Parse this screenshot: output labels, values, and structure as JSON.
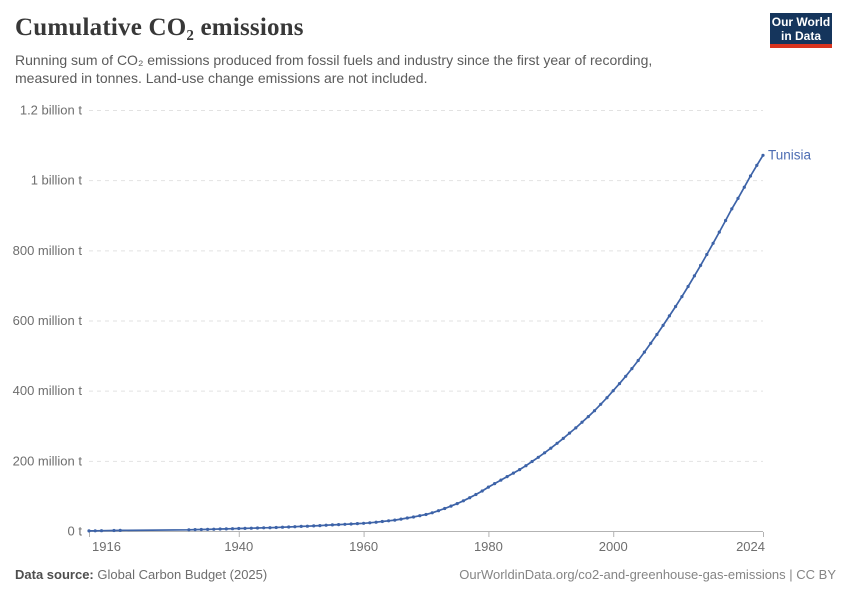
{
  "header": {
    "title": "Cumulative CO₂ emissions",
    "subtitle": "Running sum of CO₂ emissions produced from fossil fuels and industry since the first year of recording, measured in tonnes. Land-use change emissions are not included.",
    "logo": {
      "line1": "Our World",
      "line2": "in Data",
      "bg_color": "#15355c",
      "stripe_color": "#d8341f"
    }
  },
  "footer": {
    "source_label": "Data source:",
    "source_value": "Global Carbon Budget (2025)",
    "right_text": "OurWorldinData.org/co2-and-greenhouse-gas-emissions | CC BY"
  },
  "chart_data": {
    "type": "line",
    "title": "Cumulative CO₂ emissions",
    "entity_label": "Tunisia",
    "unit": "tonnes (values stored in million tonnes)",
    "line_color": "#3d63a8",
    "entity_label_color": "#4d6db3",
    "grid_color": "#e2e2e2",
    "axis_color": "#b3b3b3",
    "tick_label_color": "#6e6e6e",
    "grid": "dashed-horizontal",
    "legend_position": "line-end-label",
    "xlim": [
      1916,
      2024
    ],
    "ylim": [
      0,
      1200
    ],
    "x_ticks": [
      1916,
      1940,
      1960,
      1980,
      2000,
      2024
    ],
    "y_ticks": [
      {
        "value": 0,
        "label": "0 t"
      },
      {
        "value": 200,
        "label": "200 million t"
      },
      {
        "value": 400,
        "label": "400 million t"
      },
      {
        "value": 600,
        "label": "600 million t"
      },
      {
        "value": 800,
        "label": "800 million t"
      },
      {
        "value": 1000,
        "label": "1 billion t"
      },
      {
        "value": 1200,
        "label": "1.2 billion t"
      }
    ],
    "series": [
      {
        "name": "Tunisia",
        "points": [
          [
            1916,
            0.3
          ],
          [
            1917,
            0.6
          ],
          [
            1918,
            0.9
          ],
          [
            1920,
            1.4
          ],
          [
            1921,
            1.7
          ],
          [
            1932,
            3.5
          ],
          [
            1933,
            3.9
          ],
          [
            1934,
            4.3
          ],
          [
            1935,
            4.7
          ],
          [
            1936,
            5.1
          ],
          [
            1937,
            5.6
          ],
          [
            1938,
            6.0
          ],
          [
            1939,
            6.5
          ],
          [
            1940,
            7.0
          ],
          [
            1941,
            7.5
          ],
          [
            1942,
            8.0
          ],
          [
            1943,
            8.5
          ],
          [
            1944,
            9.0
          ],
          [
            1945,
            9.5
          ],
          [
            1946,
            10.1
          ],
          [
            1947,
            10.8
          ],
          [
            1948,
            11.5
          ],
          [
            1949,
            12.2
          ],
          [
            1950,
            13.0
          ],
          [
            1951,
            13.8
          ],
          [
            1952,
            14.6
          ],
          [
            1953,
            15.5
          ],
          [
            1954,
            16.4
          ],
          [
            1955,
            17.3
          ],
          [
            1956,
            18.2
          ],
          [
            1957,
            19.1
          ],
          [
            1958,
            20.0
          ],
          [
            1959,
            21.0
          ],
          [
            1960,
            22.0
          ],
          [
            1961,
            23.5
          ],
          [
            1962,
            25.2
          ],
          [
            1963,
            27.0
          ],
          [
            1964,
            29.0
          ],
          [
            1965,
            31.0
          ],
          [
            1966,
            34.0
          ],
          [
            1967,
            37.0
          ],
          [
            1968,
            40.0
          ],
          [
            1969,
            43.5
          ],
          [
            1970,
            47.0
          ],
          [
            1971,
            52.0
          ],
          [
            1972,
            58.0
          ],
          [
            1973,
            64.0
          ],
          [
            1974,
            71.0
          ],
          [
            1975,
            78.0
          ],
          [
            1976,
            86.0
          ],
          [
            1977,
            95.0
          ],
          [
            1978,
            104.0
          ],
          [
            1979,
            114.0
          ],
          [
            1980,
            125.0
          ],
          [
            1981,
            135.0
          ],
          [
            1982,
            145.0
          ],
          [
            1983,
            155.0
          ],
          [
            1984,
            165.0
          ],
          [
            1985,
            175.0
          ],
          [
            1986,
            186.0
          ],
          [
            1987,
            198.0
          ],
          [
            1988,
            210.0
          ],
          [
            1989,
            223.0
          ],
          [
            1990,
            236.0
          ],
          [
            1991,
            250.0
          ],
          [
            1992,
            264.0
          ],
          [
            1993,
            279.0
          ],
          [
            1994,
            294.0
          ],
          [
            1995,
            310.0
          ],
          [
            1996,
            326.0
          ],
          [
            1997,
            343.0
          ],
          [
            1998,
            361.0
          ],
          [
            1999,
            380.0
          ],
          [
            2000,
            400.0
          ],
          [
            2001,
            420.0
          ],
          [
            2002,
            441.0
          ],
          [
            2003,
            463.0
          ],
          [
            2004,
            486.0
          ],
          [
            2005,
            510.0
          ],
          [
            2006,
            535.0
          ],
          [
            2007,
            560.0
          ],
          [
            2008,
            586.0
          ],
          [
            2009,
            613.0
          ],
          [
            2010,
            640.0
          ],
          [
            2011,
            668.0
          ],
          [
            2012,
            697.0
          ],
          [
            2013,
            727.0
          ],
          [
            2014,
            757.0
          ],
          [
            2015,
            788.0
          ],
          [
            2016,
            820.0
          ],
          [
            2017,
            852.0
          ],
          [
            2018,
            885.0
          ],
          [
            2019,
            918.0
          ],
          [
            2020,
            948.0
          ],
          [
            2021,
            980.0
          ],
          [
            2022,
            1012.0
          ],
          [
            2023,
            1042.0
          ],
          [
            2024,
            1071.0
          ]
        ]
      }
    ]
  }
}
